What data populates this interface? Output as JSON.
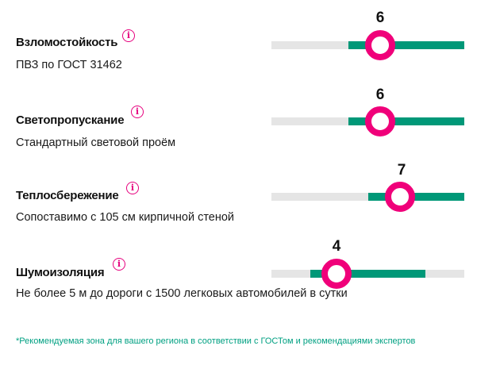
{
  "rows": [
    {
      "title": "Взломостойкость",
      "desc": "ПВЗ по ГОСТ 31462",
      "value": "6",
      "info_icon": "info-icon",
      "level_fraction": 0.55,
      "zone_fraction": [
        0.4,
        1.0
      ]
    },
    {
      "title": "Светопропускание",
      "desc": "Стандартный световой проём",
      "value": "6",
      "info_icon": "info-icon",
      "level_fraction": 0.55,
      "zone_fraction": [
        0.4,
        1.0
      ]
    },
    {
      "title": "Теплосбережение",
      "desc": "Сопоставимо с 105 см кирпичной стеной",
      "value": "7",
      "info_icon": "info-icon",
      "level_fraction": 0.66,
      "zone_fraction": [
        0.5,
        1.0
      ]
    },
    {
      "title": "Шумоизоляция",
      "desc": "Не более 5 м до дороги с 1500 легковых автомобилей в сутки",
      "value": "4",
      "info_icon": "info-icon",
      "level_fraction": 0.35,
      "zone_fraction": [
        0.2,
        0.8
      ]
    }
  ],
  "footnote": "*Рекомендуемая зона для вашего региона в соответствии с ГОСТом и рекомендациями экспертов",
  "colors": {
    "accent": "#f0007a",
    "zone": "#009878",
    "track": "#e5e5e5",
    "footnote": "#00a082"
  }
}
